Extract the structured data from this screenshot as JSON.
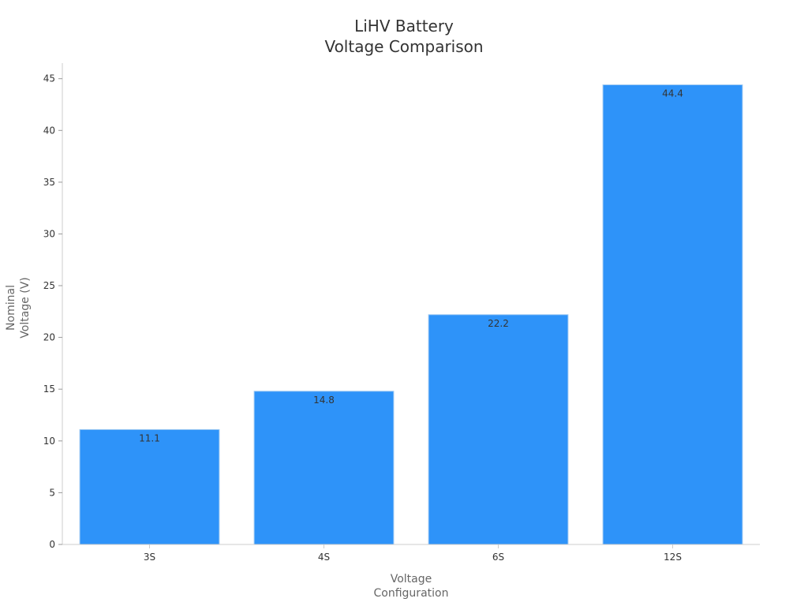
{
  "chart_data": {
    "type": "bar",
    "title_lines": [
      "LiHV Battery",
      "Voltage Comparison"
    ],
    "xlabel_lines": [
      "Voltage",
      "Configuration"
    ],
    "ylabel_lines": [
      "Nominal",
      "Voltage (V)"
    ],
    "categories": [
      "3S",
      "4S",
      "6S",
      "12S"
    ],
    "values": [
      11.1,
      14.8,
      22.2,
      44.4
    ],
    "data_labels": [
      "11.1",
      "14.8",
      "22.2",
      "44.4"
    ],
    "ylim": [
      0,
      46.5
    ],
    "yticks": [
      0,
      5,
      10,
      15,
      20,
      25,
      30,
      35,
      40,
      45
    ],
    "grid": false,
    "legend": "none",
    "bar_color": "#2e93f9",
    "axis_color": "#cccccc"
  }
}
